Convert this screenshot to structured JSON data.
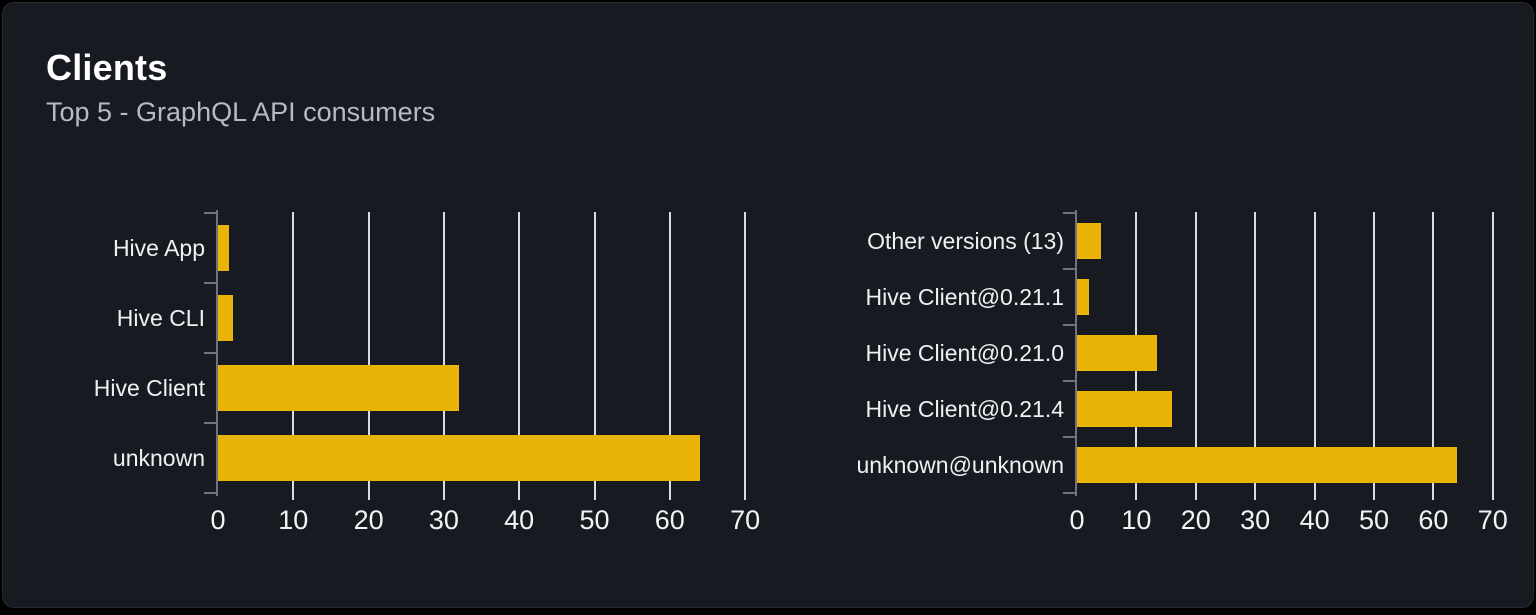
{
  "panel": {
    "title": "Clients",
    "subtitle": "Top 5 - GraphQL API consumers"
  },
  "colors": {
    "bar": "#e9b308",
    "grid": "#d9dce1",
    "axis": "#70757d",
    "card_background": "#171a20",
    "page_background": "#000000",
    "title_text": "#ffffff",
    "subtitle_text": "#b6bac2",
    "label_text": "#eef0f3"
  },
  "chart_data": [
    {
      "type": "bar",
      "orientation": "horizontal",
      "name": "clients-by-name",
      "title": "",
      "xlabel": "",
      "ylabel": "",
      "categories": [
        "Hive App",
        "Hive CLI",
        "Hive Client",
        "unknown"
      ],
      "values": [
        1.5,
        2,
        32,
        64
      ],
      "xlim": [
        0,
        70
      ],
      "xticks": [
        0,
        10,
        20,
        30,
        40,
        50,
        60,
        70
      ],
      "grid": true,
      "legend": false
    },
    {
      "type": "bar",
      "orientation": "horizontal",
      "name": "clients-by-version",
      "title": "",
      "xlabel": "",
      "ylabel": "",
      "categories": [
        "Other versions (13)",
        "Hive Client@0.21.1",
        "Hive Client@0.21.0",
        "Hive Client@0.21.4",
        "unknown@unknown"
      ],
      "values": [
        4,
        2,
        13.5,
        16,
        64
      ],
      "xlim": [
        0,
        70
      ],
      "xticks": [
        0,
        10,
        20,
        30,
        40,
        50,
        60,
        70
      ],
      "grid": true,
      "legend": false
    }
  ]
}
